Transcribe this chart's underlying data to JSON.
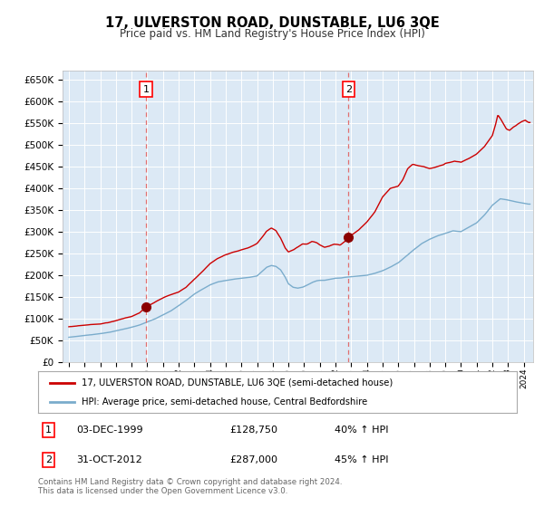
{
  "title": "17, ULVERSTON ROAD, DUNSTABLE, LU6 3QE",
  "subtitle": "Price paid vs. HM Land Registry's House Price Index (HPI)",
  "bg_color": "#dce9f5",
  "red_line_color": "#cc0000",
  "blue_line_color": "#7aaccc",
  "marker_color": "#8b0000",
  "dashed_line_color": "#e07070",
  "sale1_date": 1999.92,
  "sale1_price": 128750,
  "sale2_date": 2012.83,
  "sale2_price": 287000,
  "legend_line1": "17, ULVERSTON ROAD, DUNSTABLE, LU6 3QE (semi-detached house)",
  "legend_line2": "HPI: Average price, semi-detached house, Central Bedfordshire",
  "footer": "Contains HM Land Registry data © Crown copyright and database right 2024.\nThis data is licensed under the Open Government Licence v3.0.",
  "ylim": [
    0,
    670000
  ],
  "xlim_start": 1994.6,
  "xlim_end": 2024.6,
  "red_keypoints_x": [
    1995.0,
    1996.0,
    1997.0,
    1997.5,
    1998.0,
    1998.5,
    1999.0,
    1999.5,
    1999.92,
    2000.5,
    2001.0,
    2001.5,
    2002.0,
    2002.5,
    2003.0,
    2003.5,
    2004.0,
    2004.5,
    2005.0,
    2005.5,
    2006.0,
    2006.5,
    2007.0,
    2007.3,
    2007.6,
    2007.9,
    2008.2,
    2008.5,
    2008.8,
    2009.0,
    2009.3,
    2009.6,
    2009.9,
    2010.2,
    2010.5,
    2010.8,
    2011.0,
    2011.3,
    2011.6,
    2011.9,
    2012.0,
    2012.3,
    2012.6,
    2012.83,
    2013.0,
    2013.5,
    2014.0,
    2014.5,
    2015.0,
    2015.5,
    2016.0,
    2016.3,
    2016.6,
    2016.9,
    2017.0,
    2017.3,
    2017.6,
    2018.0,
    2018.3,
    2018.6,
    2018.9,
    2019.0,
    2019.3,
    2019.6,
    2020.0,
    2020.5,
    2021.0,
    2021.5,
    2022.0,
    2022.2,
    2022.35,
    2022.5,
    2022.7,
    2022.9,
    2023.1,
    2023.3,
    2023.5,
    2023.7,
    2023.9,
    2024.1,
    2024.3
  ],
  "red_keypoints_y": [
    82000,
    86000,
    90000,
    93000,
    97000,
    102000,
    107000,
    115000,
    128750,
    140000,
    150000,
    157000,
    163000,
    175000,
    193000,
    210000,
    228000,
    240000,
    248000,
    253000,
    258000,
    263000,
    272000,
    285000,
    300000,
    308000,
    302000,
    285000,
    262000,
    253000,
    258000,
    265000,
    272000,
    272000,
    278000,
    275000,
    270000,
    265000,
    268000,
    272000,
    272000,
    270000,
    278000,
    287000,
    292000,
    305000,
    322000,
    345000,
    380000,
    400000,
    405000,
    420000,
    445000,
    455000,
    455000,
    452000,
    450000,
    445000,
    448000,
    452000,
    455000,
    458000,
    460000,
    463000,
    460000,
    468000,
    478000,
    495000,
    520000,
    545000,
    568000,
    560000,
    548000,
    535000,
    532000,
    538000,
    542000,
    548000,
    552000,
    555000,
    550000
  ],
  "blue_keypoints_x": [
    1995.0,
    1996.0,
    1997.0,
    1997.5,
    1998.0,
    1998.5,
    1999.0,
    1999.5,
    2000.0,
    2000.5,
    2001.0,
    2001.5,
    2002.0,
    2002.5,
    2003.0,
    2003.5,
    2004.0,
    2004.5,
    2005.0,
    2005.5,
    2006.0,
    2006.5,
    2007.0,
    2007.3,
    2007.6,
    2007.9,
    2008.2,
    2008.5,
    2008.8,
    2009.0,
    2009.3,
    2009.6,
    2009.9,
    2010.2,
    2010.5,
    2010.8,
    2011.0,
    2011.3,
    2011.6,
    2011.9,
    2012.0,
    2012.3,
    2012.6,
    2012.9,
    2013.2,
    2013.5,
    2014.0,
    2014.5,
    2015.0,
    2015.5,
    2016.0,
    2016.5,
    2017.0,
    2017.5,
    2018.0,
    2018.5,
    2019.0,
    2019.5,
    2020.0,
    2020.5,
    2021.0,
    2021.5,
    2022.0,
    2022.5,
    2023.0,
    2023.5,
    2024.0,
    2024.3
  ],
  "blue_keypoints_y": [
    58000,
    62000,
    66000,
    69000,
    73000,
    77000,
    81000,
    86000,
    93000,
    100000,
    109000,
    118000,
    130000,
    143000,
    157000,
    168000,
    178000,
    185000,
    188000,
    191000,
    193000,
    195000,
    198000,
    208000,
    218000,
    222000,
    220000,
    212000,
    195000,
    180000,
    172000,
    170000,
    172000,
    177000,
    183000,
    187000,
    188000,
    188000,
    190000,
    192000,
    193000,
    193000,
    195000,
    196000,
    197000,
    198000,
    200000,
    204000,
    210000,
    218000,
    228000,
    243000,
    258000,
    272000,
    282000,
    290000,
    296000,
    302000,
    300000,
    310000,
    320000,
    338000,
    360000,
    375000,
    372000,
    368000,
    365000,
    363000
  ]
}
